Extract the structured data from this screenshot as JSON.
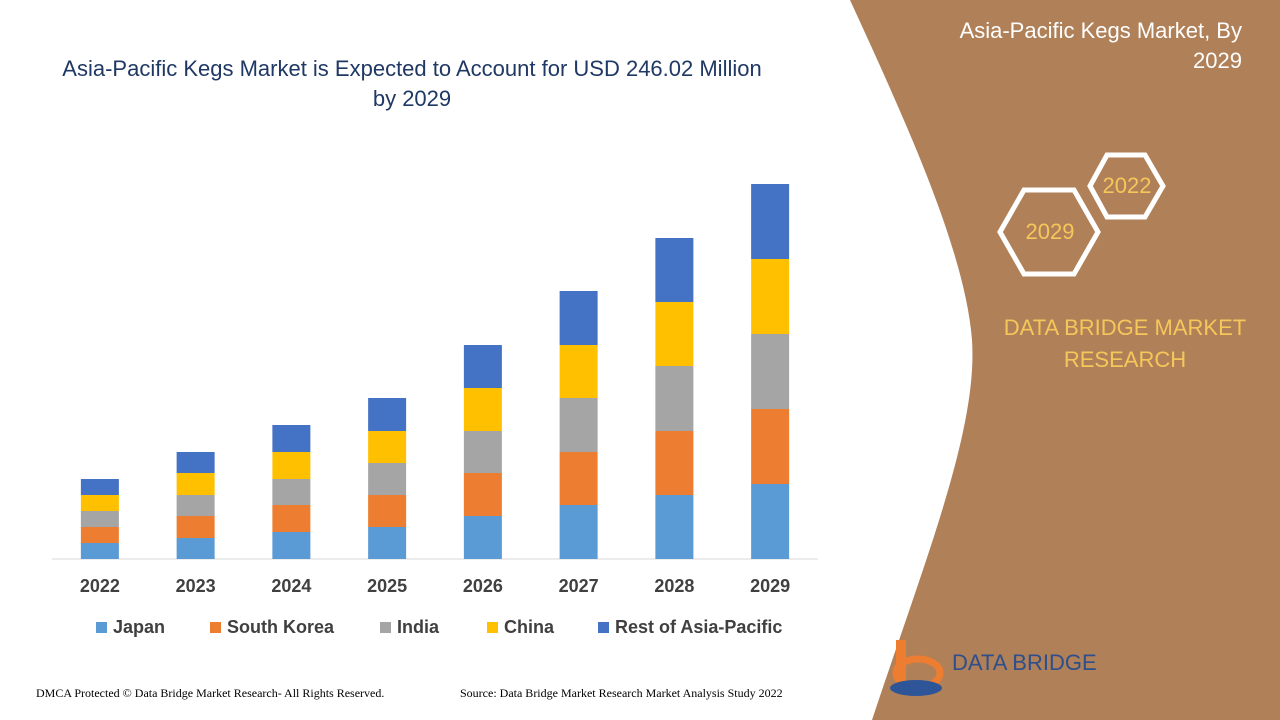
{
  "chart_data": {
    "type": "stacked_bar",
    "title": "Asia-Pacific Kegs Market is Expected to Account for USD 246.02 Million by 2029",
    "categories": [
      "2022",
      "2023",
      "2024",
      "2025",
      "2026",
      "2027",
      "2028",
      "2029"
    ],
    "series": [
      {
        "name": "Japan",
        "color": "#5b9bd5",
        "values": [
          16,
          21,
          27,
          32,
          43,
          54,
          64,
          75
        ]
      },
      {
        "name": "South Korea",
        "color": "#ed7d31",
        "values": [
          16,
          22,
          27,
          32,
          43,
          53,
          64,
          75
        ]
      },
      {
        "name": "India",
        "color": "#a5a5a5",
        "values": [
          16,
          21,
          26,
          32,
          42,
          54,
          65,
          75
        ]
      },
      {
        "name": "China",
        "color": "#ffc000",
        "values": [
          16,
          22,
          27,
          32,
          43,
          53,
          64,
          75
        ]
      },
      {
        "name": "Rest of Asia-Pacific",
        "color": "#4472c4",
        "values": [
          16,
          21,
          27,
          33,
          43,
          54,
          64,
          75
        ]
      }
    ],
    "ylim": [
      0,
      375
    ],
    "legend": "bottom"
  },
  "panel": {
    "heading": "Asia-Pacific Kegs Market, By 2029",
    "year_from": "2022",
    "year_to": "2029",
    "brand": "DATA BRIDGE MARKET RESEARCH",
    "logo": "DATA BRIDGE"
  },
  "footer": {
    "copyright": "DMCA Protected © Data Bridge Market Research- All Rights Reserved.",
    "source": "Source: Data Bridge Market Research Market Analysis Study 2022"
  }
}
